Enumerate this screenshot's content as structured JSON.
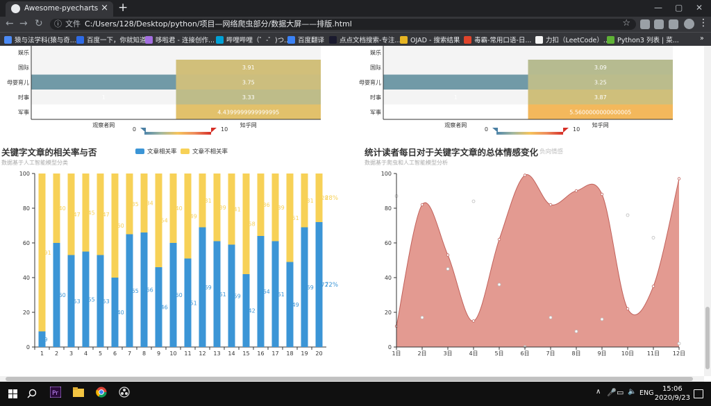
{
  "browser": {
    "tab_title": "Awesome-pyecharts",
    "new_tab": "+",
    "close_tab": "×",
    "url_scheme": "文件",
    "url": "C:/Users/128/Desktop/python/项目—网络爬虫部分/数据大屏——排版.html",
    "bookmarks": [
      {
        "label": "猿与法学科(猿与奇...",
        "color": "#4c8bf5"
      },
      {
        "label": "百度一下，你就知道",
        "color": "#2e6be6"
      },
      {
        "label": "哆啦君 - 连接创作...",
        "color": "#a36ee0"
      },
      {
        "label": "哔哩哔哩（゜-゜)つ...",
        "color": "#00a1d6"
      },
      {
        "label": "百度翻译",
        "color": "#3b82f6"
      },
      {
        "label": "点点文档搜索-专注...",
        "color": "#1a1a2e"
      },
      {
        "label": "OJAD - 搜索结果",
        "color": "#e6b422"
      },
      {
        "label": "毒霸-常用口语-日...",
        "color": "#e0442b"
      },
      {
        "label": "力扣（LeetCode）...",
        "color": "#f5f5f5"
      },
      {
        "label": "Python3 列表 | 菜...",
        "color": "#5fb236"
      }
    ],
    "colors": {
      "tabbar": "#202124",
      "toolbar": "#35363a"
    }
  },
  "heatmap_left": {
    "y_labels": [
      "娱乐",
      "国际",
      "母婴育儿",
      "时事",
      "军事"
    ],
    "x_labels": [
      "观察者网",
      "知乎网"
    ],
    "cell_values": [
      "3.91",
      "3.75",
      "3.33",
      "4.4399999999999995"
    ],
    "first_column_value": "1",
    "vm_min": "0",
    "vm_max": "10"
  },
  "heatmap_right": {
    "y_labels": [
      "娱乐",
      "国际",
      "母婴育儿",
      "时事",
      "军事"
    ],
    "x_labels": [
      "观察者网",
      "知乎网"
    ],
    "cell_values": [
      "3.09",
      "3.25",
      "3.87",
      "5.5600000000000005"
    ],
    "first_column_value": "1",
    "vm_min": "0",
    "vm_max": "10"
  },
  "bar_chart": {
    "title": "关键字文章的相关率与否",
    "subtitle": "数据基于人工智能模型分类",
    "legend": [
      {
        "name": "文章相关率",
        "color": "#3b95d6"
      },
      {
        "name": "文章不相关率",
        "color": "#f7d157"
      }
    ],
    "end_label_related": "72%",
    "end_label_unrelated": "28%"
  },
  "area_chart": {
    "title": "统计读者每日对于关键字文章的总体情感变化",
    "subtitle": "数据基于爬虫和人工智能模型分析",
    "legend": "负向情感",
    "fill_color": "#e2958b"
  },
  "chart_data": [
    {
      "type": "heatmap",
      "x": [
        "观察者网",
        "知乎网"
      ],
      "y": [
        "国际",
        "母婴育儿",
        "时事",
        "军事"
      ],
      "values": [
        [
          1,
          3.91
        ],
        [
          1,
          3.75
        ],
        [
          1,
          3.33
        ],
        [
          1,
          4.4399999999999995
        ]
      ],
      "visual_map": [
        0,
        10
      ]
    },
    {
      "type": "heatmap",
      "x": [
        "观察者网",
        "知乎网"
      ],
      "y": [
        "国际",
        "母婴育儿",
        "时事",
        "军事"
      ],
      "values": [
        [
          1,
          3.09
        ],
        [
          1,
          3.25
        ],
        [
          1,
          3.87
        ],
        [
          1,
          5.5600000000000005
        ]
      ],
      "visual_map": [
        0,
        10
      ]
    },
    {
      "type": "bar",
      "stacked": true,
      "categories": [
        "1",
        "2",
        "3",
        "4",
        "5",
        "6",
        "7",
        "8",
        "9",
        "10",
        "11",
        "12",
        "13",
        "14",
        "15",
        "16",
        "17",
        "18",
        "19",
        "20"
      ],
      "series": [
        {
          "name": "文章相关率",
          "values": [
            9,
            60,
            53,
            55,
            53,
            40,
            65,
            66,
            46,
            60,
            51,
            69,
            61,
            59,
            42,
            64,
            61,
            49,
            69,
            72
          ]
        },
        {
          "name": "文章不相关率",
          "values": [
            91,
            40,
            47,
            45,
            47,
            60,
            35,
            34,
            54,
            40,
            49,
            31,
            39,
            41,
            58,
            36,
            39,
            51,
            31,
            28
          ]
        }
      ],
      "ylim": [
        0,
        100
      ],
      "yticks": [
        0,
        20,
        40,
        60,
        80,
        100
      ]
    },
    {
      "type": "area",
      "x": [
        "1日",
        "2日",
        "3日",
        "4日",
        "5日",
        "6日",
        "7日",
        "8日",
        "9日",
        "10日",
        "11日",
        "12日"
      ],
      "values": [
        12,
        82,
        53,
        15,
        62,
        99,
        82,
        90,
        88,
        22,
        35,
        97
      ],
      "scatter": [
        87,
        17,
        45,
        84,
        36,
        0,
        17,
        9,
        16,
        76,
        63,
        2
      ],
      "ylim": [
        0,
        100
      ],
      "yticks": [
        0,
        20,
        40,
        60,
        80,
        100
      ]
    }
  ],
  "taskbar": {
    "lang": "ENG",
    "time": "15:06",
    "date": "2020/9/23"
  }
}
